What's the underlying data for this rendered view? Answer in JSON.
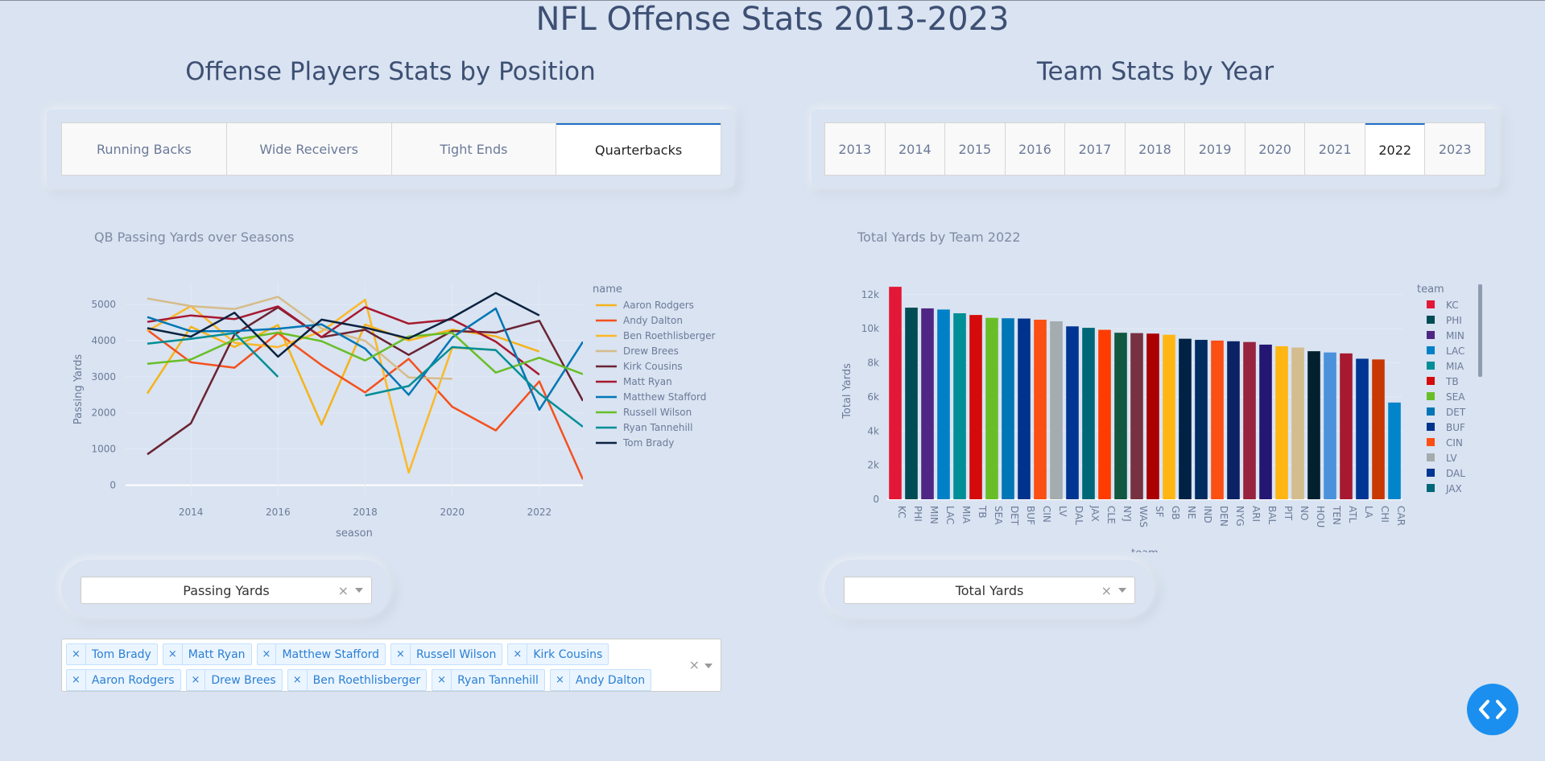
{
  "title": "NFL Offense Stats 2013-2023",
  "left": {
    "section_title": "Offense Players Stats by Position",
    "tabs": [
      {
        "label": "Running Backs",
        "active": false
      },
      {
        "label": "Wide Receivers",
        "active": false
      },
      {
        "label": "Tight Ends",
        "active": false
      },
      {
        "label": "Quarterbacks",
        "active": true
      }
    ],
    "stat_dropdown": {
      "value": "Passing Yards"
    },
    "player_chips": [
      "Tom Brady",
      "Matt Ryan",
      "Matthew Stafford",
      "Russell Wilson",
      "Kirk Cousins",
      "Aaron Rodgers",
      "Drew Brees",
      "Ben Roethlisberger",
      "Ryan Tannehill",
      "Andy Dalton"
    ]
  },
  "right": {
    "section_title": "Team Stats by Year",
    "tabs": [
      {
        "label": "2013",
        "active": false
      },
      {
        "label": "2014",
        "active": false
      },
      {
        "label": "2015",
        "active": false
      },
      {
        "label": "2016",
        "active": false
      },
      {
        "label": "2017",
        "active": false
      },
      {
        "label": "2018",
        "active": false
      },
      {
        "label": "2019",
        "active": false
      },
      {
        "label": "2020",
        "active": false
      },
      {
        "label": "2021",
        "active": false
      },
      {
        "label": "2022",
        "active": true
      },
      {
        "label": "2023",
        "active": false
      }
    ],
    "stat_dropdown": {
      "value": "Total Yards"
    }
  },
  "chart_data": [
    {
      "type": "line",
      "title": "QB Passing Yards over Seasons",
      "xlabel": "season",
      "ylabel": "Passing Yards",
      "xlim": [
        2012.5,
        2023
      ],
      "ylim": [
        -300,
        5600
      ],
      "xticks": [
        2014,
        2016,
        2018,
        2020,
        2022
      ],
      "yticks": [
        0,
        1000,
        2000,
        3000,
        4000,
        5000
      ],
      "legend_title": "name",
      "x": [
        2013,
        2014,
        2015,
        2016,
        2017,
        2018,
        2019,
        2020,
        2021,
        2022,
        2023
      ],
      "series": [
        {
          "name": "Aaron Rodgers",
          "color": "#f5b31b",
          "values": [
            2536,
            4381,
            3821,
            4428,
            1675,
            4442,
            4002,
            4299,
            4115,
            3695,
            null
          ]
        },
        {
          "name": "Andy Dalton",
          "color": "#f4511e",
          "values": [
            4293,
            3398,
            3250,
            4206,
            3320,
            2566,
            3494,
            2170,
            1515,
            2871,
            160
          ]
        },
        {
          "name": "Ben Roethlisberger",
          "color": "#fbb829",
          "values": [
            4261,
            4952,
            3938,
            3819,
            4251,
            5129,
            351,
            3803,
            3740,
            null,
            null
          ]
        },
        {
          "name": "Drew Brees",
          "color": "#d6bc8a",
          "values": [
            5162,
            4952,
            4870,
            5208,
            4334,
            3992,
            2979,
            2942,
            null,
            null,
            null
          ]
        },
        {
          "name": "Kirk Cousins",
          "color": "#6b2333",
          "values": [
            854,
            1710,
            4166,
            4917,
            4093,
            4298,
            3603,
            4265,
            4221,
            4547,
            2331
          ]
        },
        {
          "name": "Matt Ryan",
          "color": "#a71930",
          "values": [
            4515,
            4694,
            4591,
            4944,
            4095,
            4924,
            4466,
            4581,
            3968,
            3057,
            null
          ]
        },
        {
          "name": "Matthew Stafford",
          "color": "#0076b6",
          "values": [
            4650,
            4257,
            4262,
            4327,
            4446,
            3777,
            2499,
            4084,
            4886,
            2087,
            3965
          ]
        },
        {
          "name": "Russell Wilson",
          "color": "#69be28",
          "values": [
            3357,
            3475,
            4024,
            4219,
            3983,
            3448,
            4110,
            4212,
            3113,
            3524,
            3070
          ]
        },
        {
          "name": "Ryan Tannehill",
          "color": "#008e97",
          "values": [
            3913,
            4045,
            4208,
            2995,
            null,
            2480,
            2742,
            3819,
            3734,
            2536,
            1616
          ]
        },
        {
          "name": "Tom Brady",
          "color": "#0b2240",
          "values": [
            4343,
            4109,
            4770,
            3554,
            4577,
            4355,
            4057,
            4633,
            5316,
            4694,
            null
          ]
        }
      ]
    },
    {
      "type": "bar",
      "title": "Total Yards by Team 2022",
      "xlabel": "team",
      "ylabel": "Total Yards",
      "ylim": [
        0,
        12700
      ],
      "yticks": [
        0,
        2000,
        4000,
        6000,
        8000,
        10000,
        12000
      ],
      "ytick_labels": [
        "0",
        "2k",
        "4k",
        "6k",
        "8k",
        "10k",
        "12k"
      ],
      "legend_title": "team",
      "categories": [
        "KC",
        "PHI",
        "MIN",
        "LAC",
        "MIA",
        "TB",
        "SEA",
        "DET",
        "BUF",
        "CIN",
        "LV",
        "DAL",
        "JAX",
        "CLE",
        "NYJ",
        "WAS",
        "SF",
        "GB",
        "NE",
        "IND",
        "DEN",
        "NYG",
        "ARI",
        "BAL",
        "PIT",
        "NO",
        "HOU",
        "TEN",
        "ATL",
        "LA",
        "CHI",
        "CAR"
      ],
      "values": [
        12458,
        11235,
        11192,
        11124,
        10905,
        10805,
        10636,
        10612,
        10596,
        10527,
        10437,
        10138,
        10052,
        9936,
        9764,
        9742,
        9714,
        9645,
        9412,
        9346,
        9304,
        9264,
        9220,
        9067,
        8974,
        8896,
        8680,
        8609,
        8552,
        8240,
        8198,
        5672
      ],
      "colors": [
        "#e31837",
        "#004c54",
        "#4f2683",
        "#0080c6",
        "#008e97",
        "#d50a0a",
        "#69be28",
        "#0076b6",
        "#00338d",
        "#fb4f14",
        "#a5acaf",
        "#003594",
        "#006778",
        "#ff3c00",
        "#125740",
        "#773141",
        "#aa0000",
        "#ffb612",
        "#002244",
        "#002c5f",
        "#fb4f14",
        "#0b2265",
        "#97233f",
        "#241773",
        "#ffb612",
        "#d3bc8d",
        "#03202f",
        "#4b92db",
        "#a71930",
        "#003594",
        "#c83803",
        "#0085ca"
      ],
      "legend_items": [
        "KC",
        "PHI",
        "MIN",
        "LAC",
        "MIA",
        "TB",
        "SEA",
        "DET",
        "BUF",
        "CIN",
        "LV",
        "DAL",
        "JAX"
      ]
    }
  ]
}
